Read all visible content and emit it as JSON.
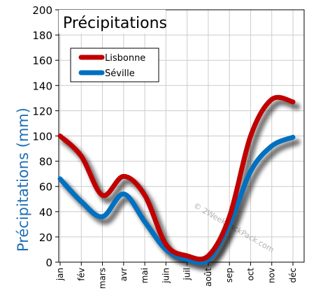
{
  "chart_data": {
    "type": "line",
    "title": "Précipitations",
    "ylabel": "Précipitations (mm)",
    "xlabel": "",
    "categories": [
      "jan",
      "fév",
      "mars",
      "avr",
      "mai",
      "juin",
      "juil",
      "août",
      "sep",
      "oct",
      "nov",
      "déc"
    ],
    "ylim": [
      0,
      200
    ],
    "yticks": [
      0,
      20,
      40,
      60,
      80,
      100,
      120,
      140,
      160,
      180,
      200
    ],
    "grid": true,
    "legend": "top-left",
    "series": [
      {
        "name": "Lisbonne",
        "color": "#c00000",
        "values": [
          100,
          84,
          53,
          68,
          53,
          14,
          5,
          5,
          36,
          100,
          129,
          127
        ]
      },
      {
        "name": "Séville",
        "color": "#0070c0",
        "values": [
          66,
          48,
          36,
          54,
          32,
          10,
          2,
          2,
          30,
          72,
          92,
          99
        ]
      }
    ],
    "watermark": "© 2WeekBackPack.com"
  }
}
